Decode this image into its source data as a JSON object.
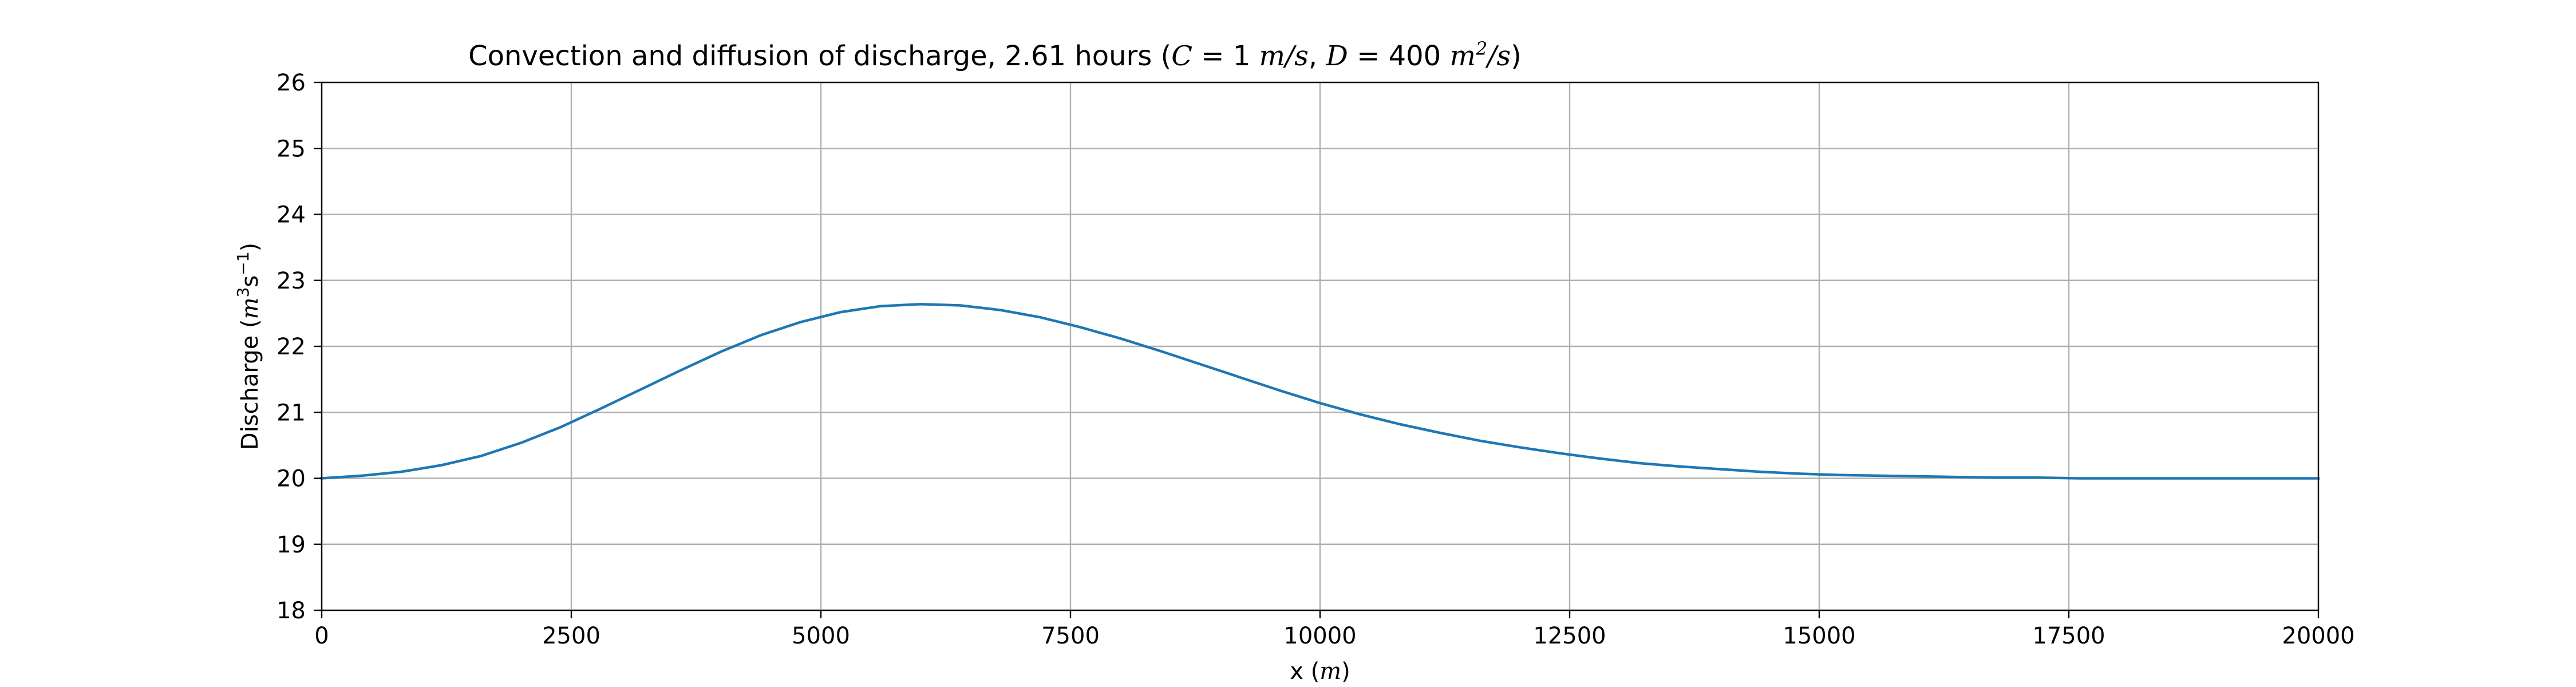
{
  "chart_data": {
    "type": "line",
    "title": {
      "prefix": "Convection and diffusion of discharge, 2.61 hours (",
      "c_symbol": "C",
      "c_value": " = 1 ",
      "c_unit": "m/s",
      "separator": ", ",
      "d_symbol": "D",
      "d_value": " = 400 ",
      "d_unit_base": "m",
      "d_unit_exp": "2",
      "d_unit_rest": "/s",
      "suffix": ")"
    },
    "xlabel": {
      "text": "x (",
      "unit": "m",
      "close": ")"
    },
    "ylabel": {
      "text": "Discharge (",
      "unit_m": "m",
      "exp3": "3",
      "unit_s": "s",
      "exp_neg1": "−1",
      "close": ")"
    },
    "xlim": [
      0,
      20000
    ],
    "ylim": [
      18,
      26
    ],
    "xticks": [
      0,
      2500,
      5000,
      7500,
      10000,
      12500,
      15000,
      17500,
      20000
    ],
    "yticks": [
      18,
      19,
      20,
      21,
      22,
      23,
      24,
      25,
      26
    ],
    "grid": true,
    "series": [
      {
        "color": "#1f77b4",
        "x": [
          0,
          400,
          800,
          1200,
          1600,
          2000,
          2400,
          2800,
          3200,
          3600,
          4000,
          4400,
          4800,
          5200,
          5600,
          6000,
          6400,
          6800,
          7200,
          7600,
          8000,
          8400,
          8800,
          9200,
          9600,
          10000,
          10400,
          10800,
          11200,
          11600,
          12000,
          12400,
          12800,
          13200,
          13600,
          14000,
          14400,
          14800,
          15200,
          15600,
          16000,
          16400,
          16800,
          17200,
          17600,
          18000,
          18400,
          18800,
          19200,
          19600,
          20000
        ],
        "y": [
          20.0,
          20.04,
          20.1,
          20.2,
          20.34,
          20.54,
          20.78,
          21.06,
          21.35,
          21.64,
          21.92,
          22.17,
          22.37,
          22.52,
          22.61,
          22.64,
          22.62,
          22.55,
          22.44,
          22.29,
          22.12,
          21.93,
          21.73,
          21.53,
          21.33,
          21.14,
          20.97,
          20.82,
          20.69,
          20.57,
          20.47,
          20.38,
          20.3,
          20.23,
          20.18,
          20.14,
          20.1,
          20.07,
          20.05,
          20.04,
          20.03,
          20.02,
          20.01,
          20.01,
          20.0,
          20.0,
          20.0,
          20.0,
          20.0,
          20.0,
          20.0
        ]
      }
    ]
  }
}
